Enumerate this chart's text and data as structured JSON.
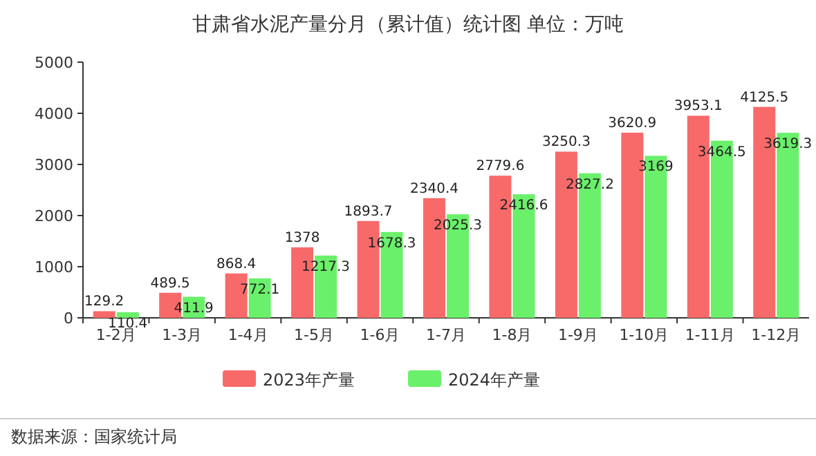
{
  "chart_data": {
    "type": "bar",
    "title": "甘肃省水泥产量分月（累计值）统计图 单位：万吨",
    "categories": [
      "1-2月",
      "1-3月",
      "1-4月",
      "1-5月",
      "1-6月",
      "1-7月",
      "1-8月",
      "1-9月",
      "1-10月",
      "1-11月",
      "1-12月"
    ],
    "series": [
      {
        "name": "2023年产量",
        "color": "#f86a6a",
        "values": [
          129.2,
          489.5,
          868.4,
          1378,
          1893.7,
          2340.4,
          2779.6,
          3250.3,
          3620.9,
          3953.1,
          4125.5
        ]
      },
      {
        "name": "2024年产量",
        "color": "#6af06a",
        "values": [
          110.4,
          411.9,
          772.1,
          1217.3,
          1678.3,
          2025.3,
          2416.6,
          2827.2,
          3169,
          3464.5,
          3619.3
        ]
      }
    ],
    "ylim": [
      0,
      5000
    ],
    "yticks": [
      0,
      1000,
      2000,
      3000,
      4000,
      5000
    ],
    "data_labels": true,
    "legend": "bottom",
    "annotations": [
      "数据来源：国家统计局"
    ]
  }
}
